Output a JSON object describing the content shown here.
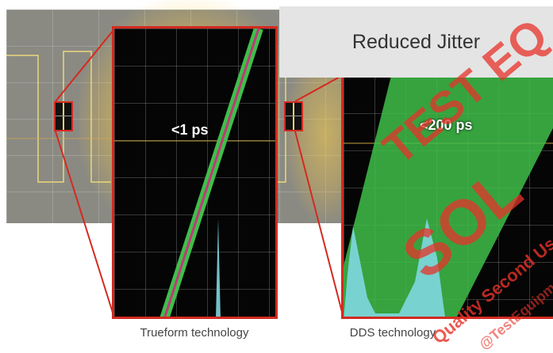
{
  "title": "Reduced Jitter",
  "left_panel": {
    "label": "<1 ps",
    "caption": "Trueform technology"
  },
  "right_panel": {
    "label": "<200 ps",
    "caption": "DDS technology"
  },
  "watermark": {
    "line1": "TEST EQ",
    "line2": "SOL",
    "line3": "Quality Second Use",
    "line4": "@TestEquipm"
  },
  "colors": {
    "frame_red": "#d42a20",
    "trace_green": "#3fbf4a",
    "trace_magenta": "#c0397a",
    "histogram_cyan": "#7fd7e0",
    "scope_trace_yellow": "#f5e07a"
  }
}
